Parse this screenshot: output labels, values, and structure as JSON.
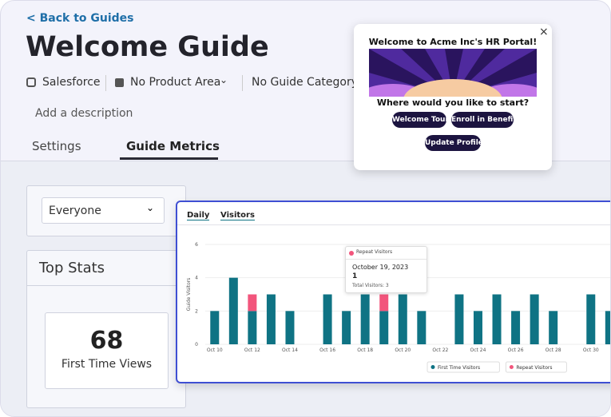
{
  "header": {
    "back_link": "< Back to Guides",
    "title": "Welcome Guide",
    "integration": "Salesforce",
    "product_area": "No Product Area",
    "guide_category": "No Guide Category",
    "description": "Add a description"
  },
  "tabs": [
    "Settings",
    "Guide Metrics"
  ],
  "filters": {
    "segment": "Everyone"
  },
  "top_stats": {
    "title": "Top Stats",
    "value": "68",
    "label": "First Time Views"
  },
  "popup": {
    "title": "Welcome to Acme Inc's HR Portal!",
    "question": "Where would you like to start?",
    "buttons": [
      "Welcome Tour",
      "Enroll in Benefits",
      "Update Profile"
    ]
  },
  "chart_controls": {
    "period": "Daily",
    "metric": "Visitors"
  },
  "tooltip": {
    "series": "Repeat Visitors",
    "date": "October 19, 2023",
    "value": "1",
    "total": "Total Visitors: 3"
  },
  "chart_data": {
    "type": "bar",
    "stacked": true,
    "ylabel": "Guide Visitors",
    "categories": [
      "Oct 10",
      null,
      "Oct 12",
      null,
      "Oct 14",
      null,
      "Oct 16",
      null,
      "Oct 18",
      null,
      "Oct 20",
      null,
      "Oct 22",
      null,
      "Oct 24",
      null,
      "Oct 26",
      null,
      "Oct 28",
      null,
      "Oct 30",
      null
    ],
    "series": [
      {
        "name": "First Time Visitors",
        "color": "#0f7384",
        "values": [
          2,
          4,
          2,
          3,
          2,
          0,
          3,
          2,
          3,
          2,
          3,
          2,
          0,
          3,
          2,
          3,
          2,
          3,
          2,
          0,
          3,
          2
        ]
      },
      {
        "name": "Repeat Visitors",
        "color": "#f2557c",
        "values": [
          0,
          0,
          1,
          0,
          0,
          0,
          0,
          0,
          0,
          1,
          0,
          0,
          0,
          0,
          0,
          0,
          0,
          0,
          0,
          0,
          0,
          0
        ]
      }
    ],
    "ylim": [
      0,
      6
    ],
    "yticks": [
      0,
      2,
      4,
      6
    ],
    "grid": true
  }
}
